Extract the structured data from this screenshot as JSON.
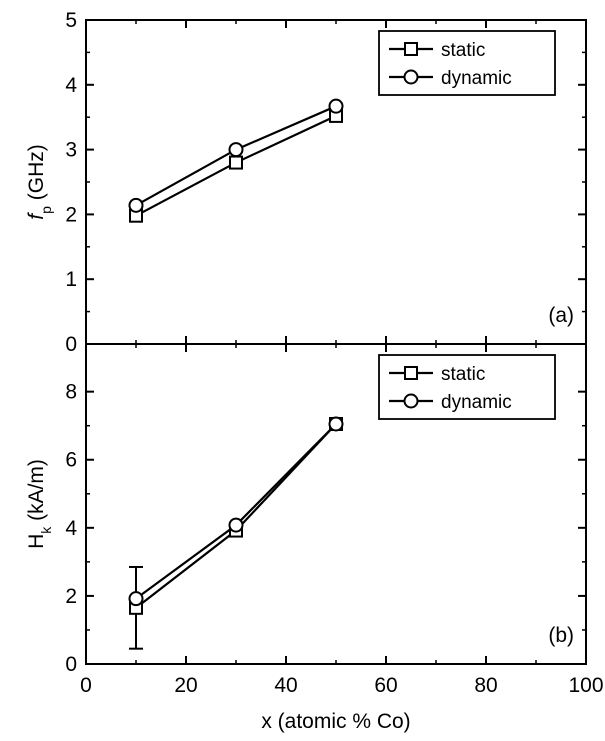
{
  "chart_data": [
    {
      "type": "line",
      "panel_label": "(a)",
      "ylabel": {
        "main": "f",
        "sub": "p",
        "unit": " (GHz)"
      },
      "xlabel": "",
      "xlim": [
        0,
        100
      ],
      "ylim": [
        0,
        5
      ],
      "yticks": [
        "0",
        "1",
        "2",
        "3",
        "4",
        "5"
      ],
      "legend_position": "top-right",
      "series": [
        {
          "name": "static",
          "marker": "square",
          "x": [
            10,
            30,
            50
          ],
          "y": [
            1.98,
            2.8,
            3.52
          ]
        },
        {
          "name": "dynamic",
          "marker": "circle",
          "x": [
            10,
            30,
            50
          ],
          "y": [
            2.14,
            3.0,
            3.67
          ]
        }
      ]
    },
    {
      "type": "line",
      "panel_label": "(b)",
      "ylabel": {
        "main": "H",
        "sub": "k",
        "unit": " (kA/m)"
      },
      "xlabel": "x (atomic % Co)",
      "xlim": [
        0,
        100
      ],
      "ylim": [
        0,
        9.4
      ],
      "xticks": [
        "0",
        "20",
        "40",
        "60",
        "80",
        "100"
      ],
      "yticks": [
        "0",
        "2",
        "4",
        "6",
        "8"
      ],
      "legend_position": "top-right",
      "series": [
        {
          "name": "static",
          "marker": "square",
          "x": [
            10,
            30,
            50
          ],
          "y": [
            1.65,
            3.92,
            7.05
          ],
          "error": [
            1.2,
            0,
            0
          ]
        },
        {
          "name": "dynamic",
          "marker": "circle",
          "x": [
            10,
            30,
            50
          ],
          "y": [
            1.92,
            4.08,
            7.05
          ]
        }
      ]
    }
  ]
}
